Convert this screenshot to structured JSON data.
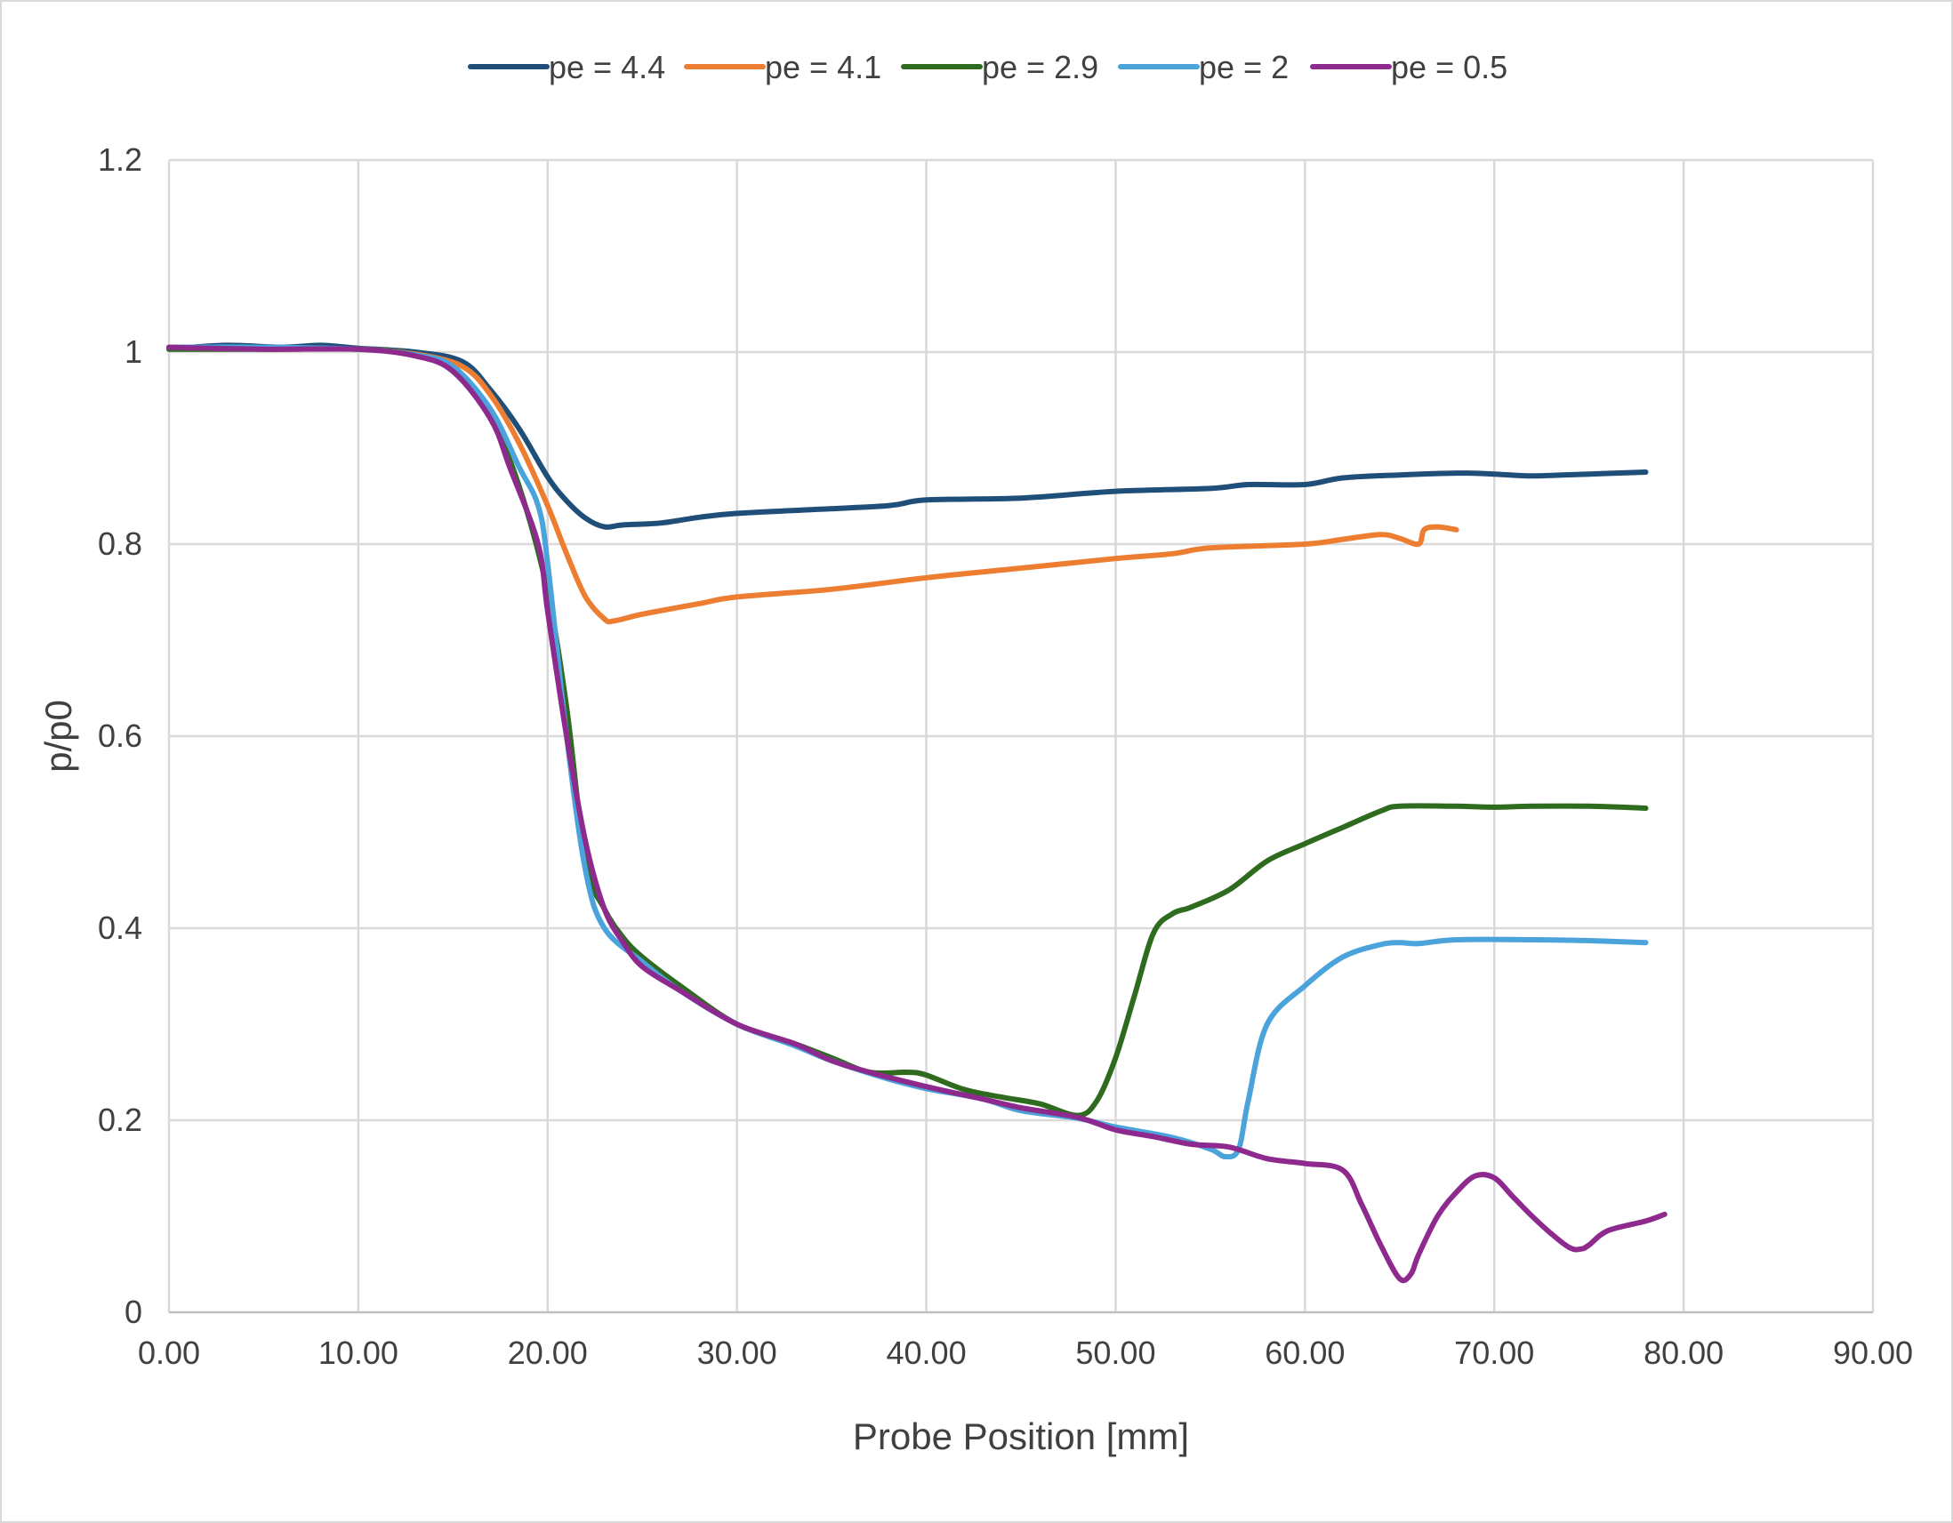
{
  "chart_data": {
    "type": "line",
    "title": "",
    "xlabel": "Probe Position [mm]",
    "ylabel": "p/p0",
    "xlim": [
      0,
      90
    ],
    "ylim": [
      0,
      1.2
    ],
    "xticks": [
      "0.00",
      "10.00",
      "20.00",
      "30.00",
      "40.00",
      "50.00",
      "60.00",
      "70.00",
      "80.00",
      "90.00"
    ],
    "yticks": [
      "0",
      "0.2",
      "0.4",
      "0.6",
      "0.8",
      "1",
      "1.2"
    ],
    "grid": true,
    "legend_position": "top",
    "series": [
      {
        "name": "pe = 4.4",
        "color": "#1f4e79",
        "points": [
          [
            0,
            1.003
          ],
          [
            3,
            1.007
          ],
          [
            6,
            1.005
          ],
          [
            8,
            1.007
          ],
          [
            10,
            1.004
          ],
          [
            13,
            1.0
          ],
          [
            15.5,
            0.99
          ],
          [
            17,
            0.96
          ],
          [
            18.5,
            0.92
          ],
          [
            20,
            0.87
          ],
          [
            21,
            0.845
          ],
          [
            22,
            0.827
          ],
          [
            23,
            0.818
          ],
          [
            24,
            0.82
          ],
          [
            26,
            0.822
          ],
          [
            28,
            0.828
          ],
          [
            30,
            0.832
          ],
          [
            34,
            0.836
          ],
          [
            38,
            0.84
          ],
          [
            40,
            0.846
          ],
          [
            45,
            0.848
          ],
          [
            50,
            0.855
          ],
          [
            55,
            0.858
          ],
          [
            57,
            0.862
          ],
          [
            60,
            0.862
          ],
          [
            62,
            0.869
          ],
          [
            65,
            0.872
          ],
          [
            68,
            0.874
          ],
          [
            70,
            0.873
          ],
          [
            72,
            0.871
          ],
          [
            75,
            0.873
          ],
          [
            78,
            0.875
          ]
        ]
      },
      {
        "name": "pe = 4.1",
        "color": "#ed7d31",
        "points": [
          [
            0,
            1.005
          ],
          [
            5,
            1.003
          ],
          [
            10,
            1.003
          ],
          [
            13,
            0.998
          ],
          [
            15.5,
            0.985
          ],
          [
            17,
            0.955
          ],
          [
            18.5,
            0.905
          ],
          [
            20,
            0.84
          ],
          [
            21,
            0.79
          ],
          [
            22,
            0.745
          ],
          [
            23,
            0.722
          ],
          [
            23.5,
            0.72
          ],
          [
            25,
            0.727
          ],
          [
            28,
            0.738
          ],
          [
            30,
            0.745
          ],
          [
            35,
            0.753
          ],
          [
            40,
            0.765
          ],
          [
            45,
            0.775
          ],
          [
            50,
            0.785
          ],
          [
            53,
            0.79
          ],
          [
            55,
            0.796
          ],
          [
            60,
            0.8
          ],
          [
            62,
            0.805
          ],
          [
            64,
            0.81
          ],
          [
            65,
            0.806
          ],
          [
            66,
            0.8
          ],
          [
            66.3,
            0.815
          ],
          [
            67,
            0.818
          ],
          [
            68,
            0.815
          ]
        ]
      },
      {
        "name": "pe = 2.9",
        "color": "#2e6b1e",
        "points": [
          [
            0,
            1.003
          ],
          [
            5,
            1.003
          ],
          [
            10,
            1.003
          ],
          [
            13,
            0.997
          ],
          [
            15,
            0.98
          ],
          [
            17,
            0.93
          ],
          [
            18.5,
            0.86
          ],
          [
            20,
            0.75
          ],
          [
            21,
            0.63
          ],
          [
            22,
            0.47
          ],
          [
            23,
            0.42
          ],
          [
            24,
            0.39
          ],
          [
            25,
            0.37
          ],
          [
            27,
            0.34
          ],
          [
            30,
            0.3
          ],
          [
            33,
            0.28
          ],
          [
            35,
            0.265
          ],
          [
            37,
            0.25
          ],
          [
            39,
            0.25
          ],
          [
            40,
            0.247
          ],
          [
            42,
            0.232
          ],
          [
            44,
            0.224
          ],
          [
            46,
            0.217
          ],
          [
            48,
            0.205
          ],
          [
            49,
            0.22
          ],
          [
            50,
            0.265
          ],
          [
            51,
            0.33
          ],
          [
            52,
            0.395
          ],
          [
            53,
            0.415
          ],
          [
            54,
            0.422
          ],
          [
            56,
            0.44
          ],
          [
            58,
            0.47
          ],
          [
            60,
            0.488
          ],
          [
            62,
            0.505
          ],
          [
            64,
            0.522
          ],
          [
            65,
            0.527
          ],
          [
            68,
            0.527
          ],
          [
            70,
            0.526
          ],
          [
            72,
            0.527
          ],
          [
            75,
            0.527
          ],
          [
            78,
            0.525
          ]
        ]
      },
      {
        "name": "pe = 2",
        "color": "#4ba3dc",
        "points": [
          [
            0,
            1.005
          ],
          [
            5,
            1.005
          ],
          [
            10,
            1.003
          ],
          [
            13,
            0.997
          ],
          [
            15,
            0.985
          ],
          [
            17,
            0.94
          ],
          [
            18.5,
            0.88
          ],
          [
            19.5,
            0.84
          ],
          [
            20,
            0.78
          ],
          [
            21,
            0.6
          ],
          [
            22,
            0.46
          ],
          [
            23,
            0.4
          ],
          [
            25,
            0.365
          ],
          [
            27,
            0.335
          ],
          [
            30,
            0.3
          ],
          [
            33,
            0.278
          ],
          [
            35,
            0.262
          ],
          [
            38,
            0.243
          ],
          [
            40,
            0.233
          ],
          [
            43,
            0.222
          ],
          [
            45,
            0.21
          ],
          [
            48,
            0.202
          ],
          [
            50,
            0.193
          ],
          [
            53,
            0.182
          ],
          [
            55,
            0.17
          ],
          [
            55.8,
            0.162
          ],
          [
            56.5,
            0.17
          ],
          [
            57,
            0.22
          ],
          [
            58,
            0.3
          ],
          [
            60,
            0.34
          ],
          [
            62,
            0.37
          ],
          [
            64,
            0.383
          ],
          [
            65,
            0.385
          ],
          [
            66,
            0.384
          ],
          [
            68,
            0.388
          ],
          [
            72,
            0.388
          ],
          [
            75,
            0.387
          ],
          [
            78,
            0.385
          ]
        ]
      },
      {
        "name": "pe = 0.5",
        "color": "#8e2a8e",
        "points": [
          [
            0,
            1.005
          ],
          [
            5,
            1.003
          ],
          [
            10,
            1.003
          ],
          [
            13,
            0.996
          ],
          [
            15,
            0.98
          ],
          [
            17,
            0.93
          ],
          [
            18,
            0.88
          ],
          [
            19.5,
            0.8
          ],
          [
            20,
            0.73
          ],
          [
            21,
            0.6
          ],
          [
            22,
            0.49
          ],
          [
            23,
            0.42
          ],
          [
            24,
            0.385
          ],
          [
            25,
            0.36
          ],
          [
            27,
            0.335
          ],
          [
            30,
            0.3
          ],
          [
            33,
            0.28
          ],
          [
            35,
            0.262
          ],
          [
            37,
            0.25
          ],
          [
            40,
            0.235
          ],
          [
            43,
            0.222
          ],
          [
            45,
            0.213
          ],
          [
            48,
            0.203
          ],
          [
            50,
            0.19
          ],
          [
            52,
            0.183
          ],
          [
            54,
            0.175
          ],
          [
            56,
            0.172
          ],
          [
            58,
            0.16
          ],
          [
            60,
            0.155
          ],
          [
            62,
            0.148
          ],
          [
            63,
            0.112
          ],
          [
            64,
            0.07
          ],
          [
            65,
            0.035
          ],
          [
            65.6,
            0.04
          ],
          [
            66,
            0.06
          ],
          [
            67,
            0.1
          ],
          [
            68,
            0.125
          ],
          [
            69,
            0.142
          ],
          [
            70,
            0.14
          ],
          [
            71,
            0.12
          ],
          [
            72,
            0.1
          ],
          [
            73,
            0.082
          ],
          [
            74,
            0.067
          ],
          [
            74.6,
            0.066
          ],
          [
            75,
            0.07
          ],
          [
            76,
            0.085
          ],
          [
            78,
            0.095
          ],
          [
            79,
            0.102
          ]
        ]
      }
    ]
  }
}
